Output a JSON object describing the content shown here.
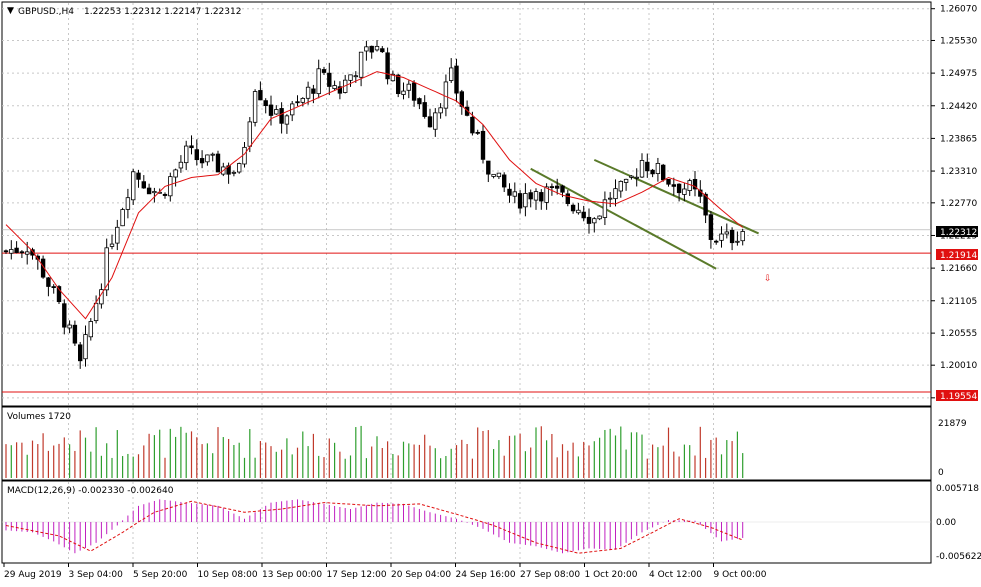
{
  "header": {
    "symbol": "GBPUSD.,H4",
    "ohlc": "1.22253 1.22312 1.22147 1.22312"
  },
  "price_panel": {
    "y_ticks": [
      "1.26070",
      "1.25530",
      "1.24975",
      "1.24420",
      "1.23865",
      "1.23310",
      "1.22770",
      "1.22215",
      "1.21660",
      "1.21105",
      "1.20555",
      "1.20010",
      "1.19455"
    ],
    "current_price_label": "1.22312",
    "resistance_label": "1.21914",
    "support_label": "1.19554",
    "ylim": [
      1.1935,
      1.2615
    ]
  },
  "volume_panel": {
    "title": "Volumes 1720",
    "y_ticks": [
      "21879",
      "0"
    ],
    "ylim": [
      0,
      21879
    ]
  },
  "macd_panel": {
    "title": "MACD(12,26,9) -0.002330 -0.002640",
    "y_ticks": [
      "0.005718",
      "0.00",
      "-0.005622"
    ],
    "ylim": [
      -0.005622,
      0.005718
    ]
  },
  "x_ticks": [
    "29 Aug 2019",
    "3 Sep 04:00",
    "5 Sep 20:00",
    "10 Sep 08:00",
    "13 Sep 00:00",
    "17 Sep 12:00",
    "20 Sep 04:00",
    "24 Sep 16:00",
    "27 Sep 08:00",
    "1 Oct 20:00",
    "4 Oct 12:00",
    "9 Oct 00:00"
  ],
  "colors": {
    "up_volume": "#2e9e2e",
    "down_volume": "#c0392b",
    "ma_line": "#e01010",
    "channel": "#5a7a2a",
    "hline": "#e01010",
    "macd_hist": "#c020c0",
    "macd_signal": "#e01010"
  },
  "chart_data": {
    "type": "candlestick",
    "symbol": "GBPUSD",
    "timeframe": "H4",
    "close_anchors": [
      [
        0,
        1.2195
      ],
      [
        4,
        1.2205
      ],
      [
        7,
        1.216
      ],
      [
        11,
        1.208
      ],
      [
        14,
        1.2
      ],
      [
        17,
        1.211
      ],
      [
        20,
        1.222
      ],
      [
        24,
        1.233
      ],
      [
        29,
        1.229
      ],
      [
        34,
        1.236
      ],
      [
        38,
        1.2345
      ],
      [
        44,
        1.233
      ],
      [
        47,
        1.248
      ],
      [
        51,
        1.242
      ],
      [
        55,
        1.244
      ],
      [
        59,
        1.249
      ],
      [
        63,
        1.247
      ],
      [
        67,
        1.252
      ],
      [
        70,
        1.255
      ],
      [
        73,
        1.248
      ],
      [
        77,
        1.246
      ],
      [
        80,
        1.242
      ],
      [
        84,
        1.249
      ],
      [
        88,
        1.24
      ],
      [
        92,
        1.232
      ],
      [
        96,
        1.228
      ],
      [
        100,
        1.23
      ],
      [
        104,
        1.229
      ],
      [
        108,
        1.227
      ],
      [
        111,
        1.225
      ],
      [
        114,
        1.229
      ],
      [
        117,
        1.23
      ],
      [
        120,
        1.235
      ],
      [
        123,
        1.233
      ],
      [
        126,
        1.231
      ],
      [
        129,
        1.23
      ],
      [
        131,
        1.228
      ],
      [
        133,
        1.222
      ],
      [
        136,
        1.2215
      ],
      [
        139,
        1.2231
      ]
    ],
    "ma_anchors": [
      [
        0,
        1.224
      ],
      [
        5,
        1.2195
      ],
      [
        10,
        1.213
      ],
      [
        15,
        1.208
      ],
      [
        20,
        1.215
      ],
      [
        25,
        1.226
      ],
      [
        30,
        1.2305
      ],
      [
        35,
        1.232
      ],
      [
        40,
        1.2325
      ],
      [
        45,
        1.236
      ],
      [
        50,
        1.242
      ],
      [
        55,
        1.244
      ],
      [
        60,
        1.246
      ],
      [
        65,
        1.248
      ],
      [
        70,
        1.25
      ],
      [
        75,
        1.249
      ],
      [
        80,
        1.247
      ],
      [
        85,
        1.245
      ],
      [
        90,
        1.241
      ],
      [
        95,
        1.235
      ],
      [
        100,
        1.231
      ],
      [
        105,
        1.229
      ],
      [
        110,
        1.228
      ],
      [
        115,
        1.2275
      ],
      [
        120,
        1.2295
      ],
      [
        125,
        1.232
      ],
      [
        130,
        1.2305
      ],
      [
        135,
        1.2265
      ],
      [
        139,
        1.2235
      ]
    ],
    "channel_upper": [
      [
        111,
        1.235
      ],
      [
        142,
        1.2225
      ]
    ],
    "channel_lower": [
      [
        99,
        1.2335
      ],
      [
        134,
        1.2165
      ]
    ],
    "horizontal_lines": [
      1.21914,
      1.19554
    ],
    "macd_anchors": [
      [
        0,
        -0.0012
      ],
      [
        5,
        -0.0015
      ],
      [
        9,
        -0.0028
      ],
      [
        13,
        -0.0045
      ],
      [
        17,
        -0.003
      ],
      [
        21,
        -0.0005
      ],
      [
        25,
        0.0025
      ],
      [
        29,
        0.0035
      ],
      [
        34,
        0.003
      ],
      [
        40,
        0.0025
      ],
      [
        45,
        0.0005
      ],
      [
        50,
        0.003
      ],
      [
        55,
        0.0035
      ],
      [
        60,
        0.0028
      ],
      [
        65,
        0.002
      ],
      [
        70,
        0.003
      ],
      [
        75,
        0.0028
      ],
      [
        80,
        0.0015
      ],
      [
        85,
        0.0005
      ],
      [
        90,
        -0.001
      ],
      [
        95,
        -0.003
      ],
      [
        100,
        -0.0035
      ],
      [
        105,
        -0.0045
      ],
      [
        110,
        -0.0038
      ],
      [
        115,
        -0.004
      ],
      [
        120,
        -0.0015
      ],
      [
        125,
        0.0003
      ],
      [
        130,
        0.0002
      ],
      [
        135,
        -0.0028
      ],
      [
        139,
        -0.0023
      ]
    ],
    "signal_anchors": [
      [
        0,
        -0.0005
      ],
      [
        10,
        -0.002
      ],
      [
        16,
        -0.0042
      ],
      [
        22,
        -0.0015
      ],
      [
        28,
        0.0015
      ],
      [
        35,
        0.0032
      ],
      [
        45,
        0.0015
      ],
      [
        52,
        0.002
      ],
      [
        60,
        0.003
      ],
      [
        70,
        0.0025
      ],
      [
        78,
        0.0028
      ],
      [
        85,
        0.0012
      ],
      [
        92,
        -0.0005
      ],
      [
        100,
        -0.003
      ],
      [
        108,
        -0.0045
      ],
      [
        116,
        -0.0038
      ],
      [
        122,
        -0.0015
      ],
      [
        127,
        0.0005
      ],
      [
        133,
        -0.0008
      ],
      [
        139,
        -0.0026
      ]
    ]
  }
}
